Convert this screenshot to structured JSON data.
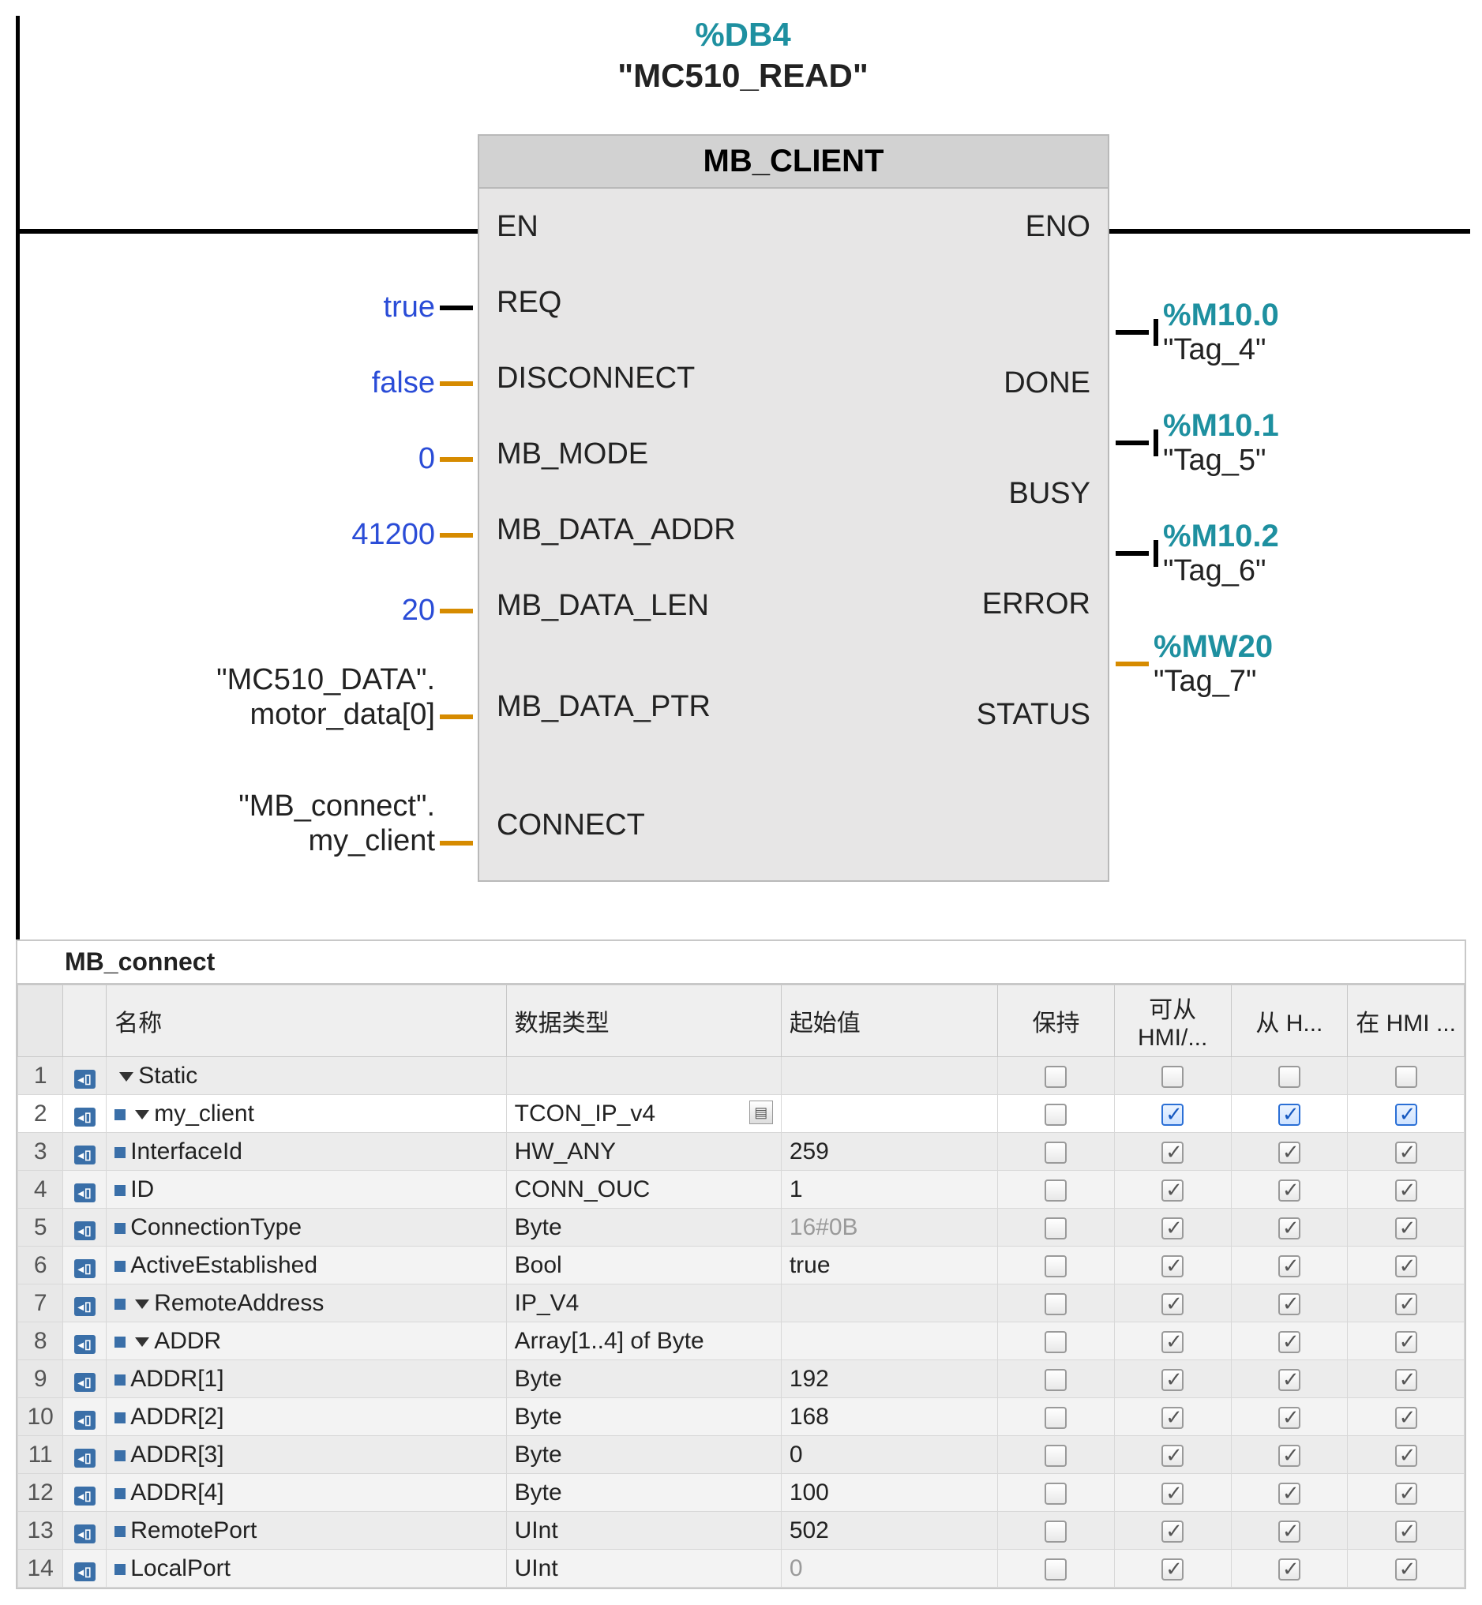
{
  "block": {
    "db_addr": "%DB4",
    "db_name": "\"MC510_READ\"",
    "title": "MB_CLIENT",
    "left_pins": [
      "EN",
      "REQ",
      "DISCONNECT",
      "MB_MODE",
      "MB_DATA_ADDR",
      "MB_DATA_LEN",
      "MB_DATA_PTR",
      "CONNECT"
    ],
    "right_pins": [
      "ENO",
      "DONE",
      "BUSY",
      "ERROR",
      "STATUS"
    ],
    "inputs": {
      "req": "true",
      "disconnect": "false",
      "mb_mode": "0",
      "mb_data_addr": "41200",
      "mb_data_len": "20",
      "mb_data_ptr_l1": "\"MC510_DATA\".",
      "mb_data_ptr_l2": "motor_data[0]",
      "connect_l1": "\"MB_connect\".",
      "connect_l2": "my_client"
    },
    "outputs": {
      "done_addr": "%M10.0",
      "done_name": "\"Tag_4\"",
      "busy_addr": "%M10.1",
      "busy_name": "\"Tag_5\"",
      "error_addr": "%M10.2",
      "error_name": "\"Tag_6\"",
      "status_addr": "%MW20",
      "status_name": "\"Tag_7\""
    }
  },
  "table": {
    "title": "MB_connect",
    "columns": [
      "名称",
      "数据类型",
      "起始值",
      "保持",
      "可从 HMI/...",
      "从 H...",
      "在 HMI ..."
    ],
    "rows": [
      {
        "n": "1",
        "indent": 1,
        "arrow": true,
        "bullet": false,
        "name": "Static",
        "type": "",
        "init": "",
        "hold": "off",
        "c1": "off",
        "c2": "off",
        "c3": "off"
      },
      {
        "n": "2",
        "indent": 2,
        "arrow": true,
        "bullet": true,
        "name": "my_client",
        "type": "TCON_IP_v4",
        "type_btn": true,
        "init": "",
        "hold": "off",
        "c1": "blue-on",
        "c2": "blue-on",
        "c3": "blue-on",
        "active": true
      },
      {
        "n": "3",
        "indent": 3,
        "arrow": false,
        "bullet": true,
        "name": "InterfaceId",
        "type": "HW_ANY",
        "init": "259",
        "hold": "off",
        "c1": "on",
        "c2": "on",
        "c3": "on"
      },
      {
        "n": "4",
        "indent": 3,
        "arrow": false,
        "bullet": true,
        "name": "ID",
        "type": "CONN_OUC",
        "init": "1",
        "hold": "off",
        "c1": "on",
        "c2": "on",
        "c3": "on"
      },
      {
        "n": "5",
        "indent": 3,
        "arrow": false,
        "bullet": true,
        "name": "ConnectionType",
        "type": "Byte",
        "init": "16#0B",
        "init_gray": true,
        "hold": "off",
        "c1": "on",
        "c2": "on",
        "c3": "on"
      },
      {
        "n": "6",
        "indent": 3,
        "arrow": false,
        "bullet": true,
        "name": "ActiveEstablished",
        "type": "Bool",
        "init": "true",
        "hold": "off",
        "c1": "on",
        "c2": "on",
        "c3": "on"
      },
      {
        "n": "7",
        "indent": 3,
        "arrow": true,
        "bullet": true,
        "name": "RemoteAddress",
        "type": "IP_V4",
        "init": "",
        "hold": "off",
        "c1": "on",
        "c2": "on",
        "c3": "on"
      },
      {
        "n": "8",
        "indent": 4,
        "arrow": true,
        "bullet": true,
        "name": "ADDR",
        "type": "Array[1..4] of Byte",
        "init": "",
        "hold": "off",
        "c1": "on",
        "c2": "on",
        "c3": "on"
      },
      {
        "n": "9",
        "indent": 5,
        "arrow": false,
        "bullet": true,
        "name": "ADDR[1]",
        "type": "Byte",
        "init": "192",
        "hold": "off",
        "c1": "on",
        "c2": "on",
        "c3": "on"
      },
      {
        "n": "10",
        "indent": 5,
        "arrow": false,
        "bullet": true,
        "name": "ADDR[2]",
        "type": "Byte",
        "init": "168",
        "hold": "off",
        "c1": "on",
        "c2": "on",
        "c3": "on"
      },
      {
        "n": "11",
        "indent": 5,
        "arrow": false,
        "bullet": true,
        "name": "ADDR[3]",
        "type": "Byte",
        "init": "0",
        "hold": "off",
        "c1": "on",
        "c2": "on",
        "c3": "on"
      },
      {
        "n": "12",
        "indent": 5,
        "arrow": false,
        "bullet": true,
        "name": "ADDR[4]",
        "type": "Byte",
        "init": "100",
        "hold": "off",
        "c1": "on",
        "c2": "on",
        "c3": "on"
      },
      {
        "n": "13",
        "indent": 3,
        "arrow": false,
        "bullet": true,
        "name": "RemotePort",
        "type": "UInt",
        "init": "502",
        "hold": "off",
        "c1": "on",
        "c2": "on",
        "c3": "on"
      },
      {
        "n": "14",
        "indent": 3,
        "arrow": false,
        "bullet": true,
        "name": "LocalPort",
        "type": "UInt",
        "init": "0",
        "init_gray": true,
        "hold": "off",
        "c1": "on",
        "c2": "on",
        "c3": "on"
      }
    ]
  },
  "colors": {
    "teal": "#1e90a0",
    "param_blue": "#2a4cd7",
    "wire_orange": "#d68b00",
    "box_bg": "#e7e6e6"
  }
}
